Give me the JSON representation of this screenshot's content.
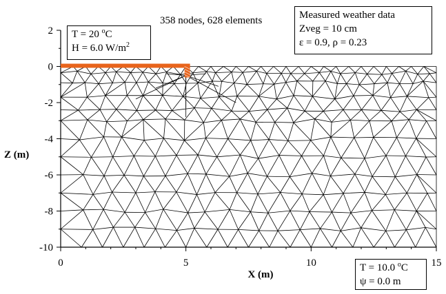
{
  "header": {
    "mesh_info": "358 nodes, 628 elements"
  },
  "left_box": {
    "temp_label": "T = 20 ",
    "temp_unit": "C",
    "flux_label": "H = 6.0 W/m",
    "flux_exp": "2"
  },
  "weather_box": {
    "title": "Measured weather data",
    "zveg": "Zveg = 10 cm",
    "emis": "ε = 0.9, ρ = 0.23"
  },
  "bottom_box": {
    "temp_label": "T = 10.0 ",
    "temp_unit": "C",
    "psi": "ψ = 0.0 m"
  },
  "axes": {
    "xlabel": "X (m)",
    "ylabel": "Z (m)",
    "x_ticks": [
      "0",
      "5",
      "10",
      "15"
    ],
    "y_ticks": [
      "2",
      "0",
      "-2",
      "-4",
      "-6",
      "-8",
      "-10"
    ]
  },
  "colors": {
    "heated_strip": "#e8641c",
    "mesh_line": "#000000"
  },
  "chart_data": {
    "type": "mesh",
    "x_range": [
      0,
      15
    ],
    "z_range": [
      -10,
      2
    ],
    "domain": {
      "x": [
        0,
        15
      ],
      "z": [
        -10,
        0
      ]
    },
    "heated_strip": {
      "x": [
        0,
        5
      ],
      "z": 0
    },
    "nodes": 358,
    "elements": 628
  }
}
